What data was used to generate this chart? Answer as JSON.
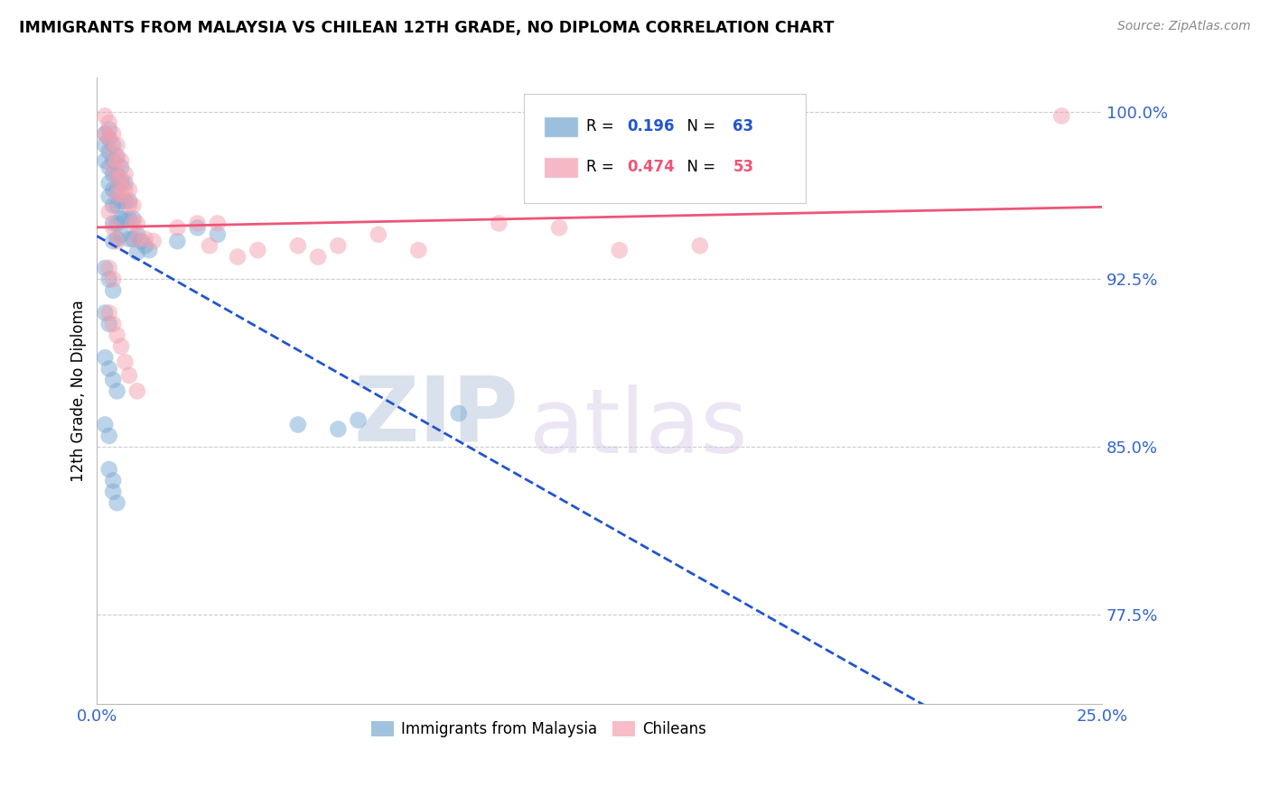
{
  "title": "IMMIGRANTS FROM MALAYSIA VS CHILEAN 12TH GRADE, NO DIPLOMA CORRELATION CHART",
  "source": "Source: ZipAtlas.com",
  "ylabel": "12th Grade, No Diploma",
  "xlim": [
    0.0,
    0.25
  ],
  "ylim": [
    0.735,
    1.015
  ],
  "xticks": [
    0.0,
    0.05,
    0.1,
    0.15,
    0.2,
    0.25
  ],
  "xticklabels": [
    "0.0%",
    "",
    "",
    "",
    "",
    "25.0%"
  ],
  "ytick_positions": [
    0.775,
    0.85,
    0.925,
    1.0
  ],
  "ytick_labels": [
    "77.5%",
    "85.0%",
    "92.5%",
    "100.0%"
  ],
  "legend_blue_r": "0.196",
  "legend_blue_n": "63",
  "legend_pink_r": "0.474",
  "legend_pink_n": "53",
  "legend_label_blue": "Immigrants from Malaysia",
  "legend_label_pink": "Chileans",
  "blue_color": "#7BAAD4",
  "pink_color": "#F4A0B0",
  "blue_line_color": "#2255CC",
  "pink_line_color": "#EE5577",
  "watermark_zip": "ZIP",
  "watermark_atlas": "atlas",
  "blue_dots_x": [
    0.002,
    0.002,
    0.002,
    0.003,
    0.003,
    0.003,
    0.003,
    0.003,
    0.003,
    0.004,
    0.004,
    0.004,
    0.004,
    0.004,
    0.004,
    0.004,
    0.005,
    0.005,
    0.005,
    0.005,
    0.005,
    0.005,
    0.006,
    0.006,
    0.006,
    0.006,
    0.006,
    0.007,
    0.007,
    0.007,
    0.008,
    0.008,
    0.008,
    0.009,
    0.009,
    0.01,
    0.01,
    0.011,
    0.012,
    0.013,
    0.02,
    0.025,
    0.03,
    0.002,
    0.003,
    0.004,
    0.002,
    0.003,
    0.002,
    0.003,
    0.004,
    0.005,
    0.002,
    0.003,
    0.003,
    0.004,
    0.004,
    0.005,
    0.05,
    0.06,
    0.065,
    0.09
  ],
  "blue_dots_y": [
    0.99,
    0.985,
    0.978,
    0.992,
    0.988,
    0.982,
    0.975,
    0.968,
    0.962,
    0.985,
    0.978,
    0.972,
    0.965,
    0.958,
    0.95,
    0.942,
    0.98,
    0.972,
    0.965,
    0.958,
    0.95,
    0.943,
    0.975,
    0.968,
    0.96,
    0.952,
    0.945,
    0.968,
    0.96,
    0.952,
    0.96,
    0.952,
    0.943,
    0.952,
    0.943,
    0.945,
    0.937,
    0.942,
    0.94,
    0.938,
    0.942,
    0.948,
    0.945,
    0.93,
    0.925,
    0.92,
    0.91,
    0.905,
    0.89,
    0.885,
    0.88,
    0.875,
    0.86,
    0.855,
    0.84,
    0.835,
    0.83,
    0.825,
    0.86,
    0.858,
    0.862,
    0.865
  ],
  "pink_dots_x": [
    0.002,
    0.002,
    0.003,
    0.003,
    0.004,
    0.004,
    0.004,
    0.005,
    0.005,
    0.005,
    0.005,
    0.006,
    0.006,
    0.006,
    0.007,
    0.007,
    0.008,
    0.008,
    0.009,
    0.009,
    0.01,
    0.01,
    0.012,
    0.014,
    0.02,
    0.025,
    0.028,
    0.03,
    0.035,
    0.04,
    0.05,
    0.055,
    0.06,
    0.07,
    0.08,
    0.1,
    0.115,
    0.13,
    0.15,
    0.24,
    0.003,
    0.004,
    0.005,
    0.003,
    0.004,
    0.003,
    0.004,
    0.005,
    0.006,
    0.007,
    0.008,
    0.01
  ],
  "pink_dots_y": [
    0.998,
    0.99,
    0.995,
    0.988,
    0.99,
    0.982,
    0.975,
    0.985,
    0.978,
    0.97,
    0.963,
    0.978,
    0.97,
    0.963,
    0.972,
    0.965,
    0.965,
    0.958,
    0.958,
    0.95,
    0.95,
    0.943,
    0.943,
    0.942,
    0.948,
    0.95,
    0.94,
    0.95,
    0.935,
    0.938,
    0.94,
    0.935,
    0.94,
    0.945,
    0.938,
    0.95,
    0.948,
    0.938,
    0.94,
    0.998,
    0.955,
    0.948,
    0.942,
    0.93,
    0.925,
    0.91,
    0.905,
    0.9,
    0.895,
    0.888,
    0.882,
    0.875
  ]
}
